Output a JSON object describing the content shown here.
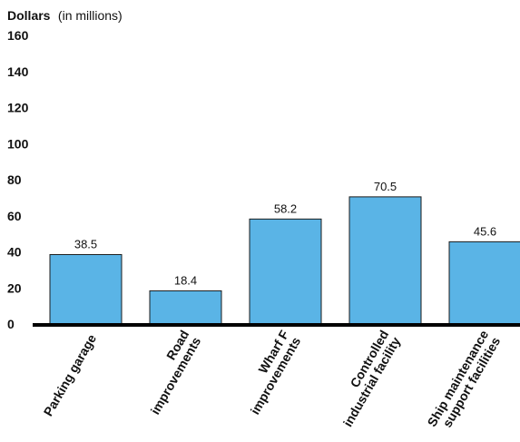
{
  "chart_data": {
    "type": "bar",
    "y_title": "Dollars",
    "y_unit": "(in millions)",
    "ylim": [
      0,
      160
    ],
    "y_ticks": [
      "160",
      "140",
      "120",
      "100",
      "80",
      "60",
      "40",
      "20",
      "0"
    ],
    "categories": [
      [
        "Parking garage"
      ],
      [
        "Road",
        "improvements"
      ],
      [
        "Wharf F",
        "improvements"
      ],
      [
        "Controlled",
        "industrial facility"
      ],
      [
        "Ship maintenance",
        "support facilities"
      ]
    ],
    "values": [
      38.5,
      18.4,
      58.2,
      70.5,
      45.6
    ],
    "value_labels": [
      "38.5",
      "18.4",
      "58.2",
      "70.5",
      "45.6"
    ],
    "grid": false,
    "colors": {
      "bar": "#5ab4e6",
      "bar_edge": "#1c1c1c",
      "axis": "#000000"
    }
  }
}
